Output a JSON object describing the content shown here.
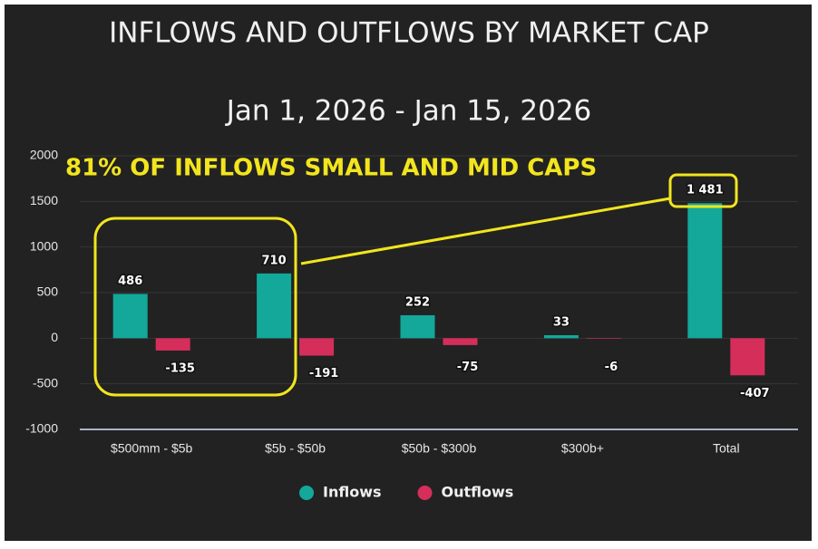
{
  "chart_data": {
    "type": "bar",
    "title": "INFLOWS AND OUTFLOWS BY MARKET CAP",
    "subtitle": "Jan 1, 2026 - Jan 15, 2026",
    "annotation": "81% OF INFLOWS SMALL AND MID CAPS",
    "categories": [
      "$500mm - $5b",
      "$5b - $50b",
      "$50b - $300b",
      "$300b+",
      "Total"
    ],
    "series": [
      {
        "name": "Inflows",
        "color": "#13a89a",
        "values": [
          486,
          710,
          252,
          33,
          1481
        ],
        "value_labels": [
          "486",
          "710",
          "252",
          "33",
          "1 481"
        ]
      },
      {
        "name": "Outflows",
        "color": "#d52e5b",
        "values": [
          -135,
          -191,
          -75,
          -6,
          -407
        ]
      }
    ],
    "ylim": [
      -1000,
      2000
    ],
    "yticks": [
      -1000,
      -500,
      0,
      500,
      1000,
      1500,
      2000
    ],
    "grid": true,
    "legend": "bottom"
  }
}
